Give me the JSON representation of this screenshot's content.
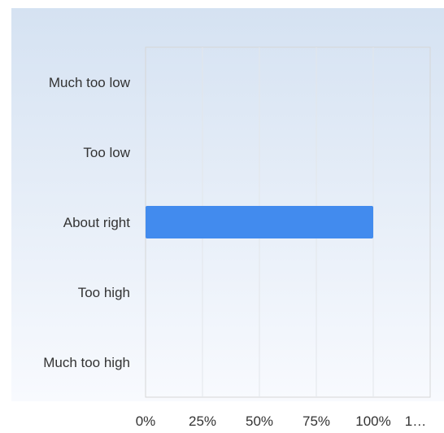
{
  "chart_data": {
    "type": "bar",
    "orientation": "horizontal",
    "categories": [
      "Much too low",
      "Too low",
      "About right",
      "Too high",
      "Much too high"
    ],
    "values": [
      0,
      0,
      100,
      0,
      0
    ],
    "unit": "%",
    "xlim": [
      0,
      125
    ],
    "x_ticks": [
      "0%",
      "25%",
      "50%",
      "75%",
      "100%",
      "1…"
    ],
    "grid": true,
    "legend": "none",
    "bar_color": "#428bee",
    "background_gradient": [
      "#d5e2f2",
      "#f8fafe"
    ]
  }
}
